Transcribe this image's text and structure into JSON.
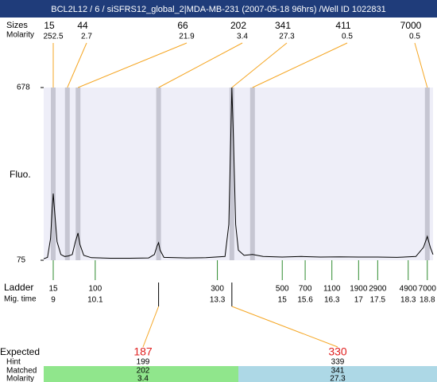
{
  "chart_data": {
    "type": "electropherogram",
    "title": "BCL2L12 / 6 / siSFRS12_global_2|MDA-MB-231 (2007-05-18 96hrs) /Well ID 1022831",
    "size_label": "Sizes",
    "molarity_label": "Molarity",
    "ylabel": "Fluo.",
    "ylim": [
      75,
      678
    ],
    "yticks": [
      678,
      75
    ],
    "xlim": [
      8.75,
      18.95
    ],
    "peaks": [
      {
        "size": 15,
        "molarity": 252.5,
        "time": 9.0
      },
      {
        "size": 44,
        "molarity": 2.7,
        "time": 9.37
      },
      {
        "size": 66,
        "molarity": 21.9,
        "time": 9.65
      },
      {
        "size": 202,
        "molarity": 3.4,
        "time": 11.76
      },
      {
        "size": 341,
        "molarity": 27.3,
        "time": 13.68
      },
      {
        "size": 411,
        "molarity": 0.5,
        "time": 14.22
      },
      {
        "size": 7000,
        "molarity": 0.5,
        "time": 18.8
      }
    ],
    "trace": {
      "time": [
        8.75,
        8.85,
        8.93,
        8.97,
        9.0,
        9.04,
        9.1,
        9.2,
        9.3,
        9.4,
        9.5,
        9.58,
        9.65,
        9.7,
        9.8,
        10.0,
        10.5,
        11.0,
        11.5,
        11.65,
        11.72,
        11.76,
        11.8,
        11.9,
        12.5,
        13.0,
        13.5,
        13.6,
        13.65,
        13.68,
        13.72,
        13.78,
        13.85,
        14.0,
        14.22,
        14.5,
        15.0,
        15.5,
        16.0,
        16.5,
        17.0,
        17.5,
        18.0,
        18.5,
        18.7,
        18.8,
        18.88,
        18.95
      ],
      "fluo": [
        80,
        85,
        150,
        250,
        308,
        240,
        140,
        95,
        88,
        90,
        95,
        140,
        170,
        130,
        92,
        84,
        82,
        82,
        83,
        95,
        125,
        136,
        110,
        85,
        83,
        84,
        88,
        200,
        500,
        678,
        500,
        200,
        110,
        92,
        95,
        88,
        86,
        88,
        86,
        87,
        86,
        86,
        85,
        88,
        120,
        158,
        120,
        95
      ]
    },
    "ladder_label": "Ladder",
    "time_label": "Mig. time",
    "ladder": [
      {
        "size": 15,
        "time": 9
      },
      {
        "size": 100,
        "time": 10.1
      },
      {
        "size": 300,
        "time": 13.3
      },
      {
        "size": 500,
        "time": 15
      },
      {
        "size": 700,
        "time": 15.6
      },
      {
        "size": 1100,
        "time": 16.3
      },
      {
        "size": 1900,
        "time": 17
      },
      {
        "size": 2900,
        "time": 17.5
      },
      {
        "size": 4900,
        "time": 18.3
      },
      {
        "size": 7000,
        "time": 18.8
      }
    ],
    "row_labels": [
      "Expected",
      "Hint",
      "Matched",
      "Molarity"
    ],
    "expected": [
      {
        "expected": 187,
        "hint": 199,
        "matched": 202,
        "molarity": 3.4
      },
      {
        "expected": 330,
        "hint": 339,
        "matched": 341,
        "molarity": 27.3
      }
    ]
  }
}
